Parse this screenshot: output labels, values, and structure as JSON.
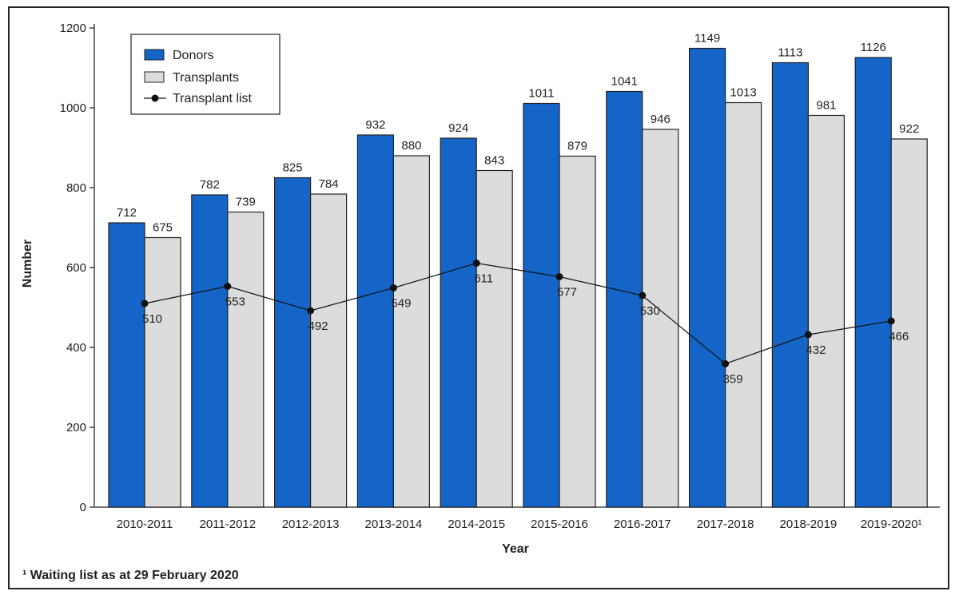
{
  "chart_data": {
    "type": "bar",
    "categories": [
      "2010-2011",
      "2011-2012",
      "2012-2013",
      "2013-2014",
      "2014-2015",
      "2015-2016",
      "2016-2017",
      "2017-2018",
      "2018-2019",
      "2019-2020¹"
    ],
    "series": [
      {
        "name": "Donors",
        "kind": "bar",
        "color": "#1565c8",
        "values": [
          712,
          782,
          825,
          932,
          924,
          1011,
          1041,
          1149,
          1113,
          1126
        ]
      },
      {
        "name": "Transplants",
        "kind": "bar",
        "color": "#dcdcdc",
        "values": [
          675,
          739,
          784,
          880,
          843,
          879,
          946,
          1013,
          981,
          922
        ]
      },
      {
        "name": "Transplant list",
        "kind": "line",
        "color": "#111111",
        "values": [
          510,
          553,
          492,
          549,
          611,
          577,
          530,
          359,
          432,
          466
        ]
      }
    ],
    "xlabel": "Year",
    "ylabel": "Number",
    "ylim": [
      0,
      1200
    ],
    "yticks": [
      0,
      200,
      400,
      600,
      800,
      1000,
      1200
    ],
    "grid": false,
    "legend": "top-left",
    "footnote": "¹ Waiting list as at 29 February 2020"
  }
}
